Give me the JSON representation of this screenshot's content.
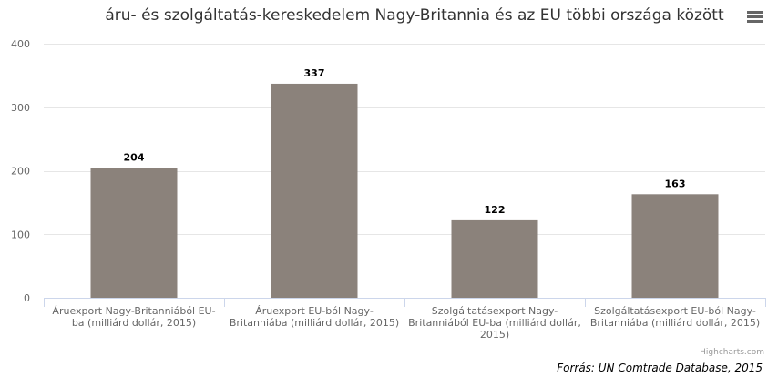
{
  "chart_data": {
    "type": "bar",
    "title": "áru- és szolgáltatás-kereskedelem Nagy-Britannia és az EU többi országa között",
    "categories": [
      [
        "Áruexport Nagy-Britanniából EU-",
        "ba (milliárd dollár, 2015)"
      ],
      [
        "Áruexport EU-ból Nagy-",
        "Britanniába (milliárd dollár, 2015)"
      ],
      [
        "Szolgáltatásexport Nagy-",
        "Britanniából EU-ba (milliárd dollár,",
        "2015)"
      ],
      [
        "Szolgáltatásexport EU-ból Nagy-",
        "Britanniába (milliárd dollár, 2015)"
      ]
    ],
    "values": [
      204,
      337,
      122,
      163
    ],
    "data_labels": [
      "204",
      "337",
      "122",
      "163"
    ],
    "ylim": [
      0,
      400
    ],
    "yticks": [
      0,
      100,
      200,
      300,
      400
    ],
    "ytick_labels": [
      "0",
      "100",
      "200",
      "300",
      "400"
    ],
    "xlabel": "",
    "ylabel": "",
    "grid": true,
    "legend": "none",
    "bar_color": "#8b827b"
  },
  "credits": "Highcharts.com",
  "source": "Forrás: UN Comtrade Database, 2015",
  "menu_icon": "hamburger-menu-icon"
}
